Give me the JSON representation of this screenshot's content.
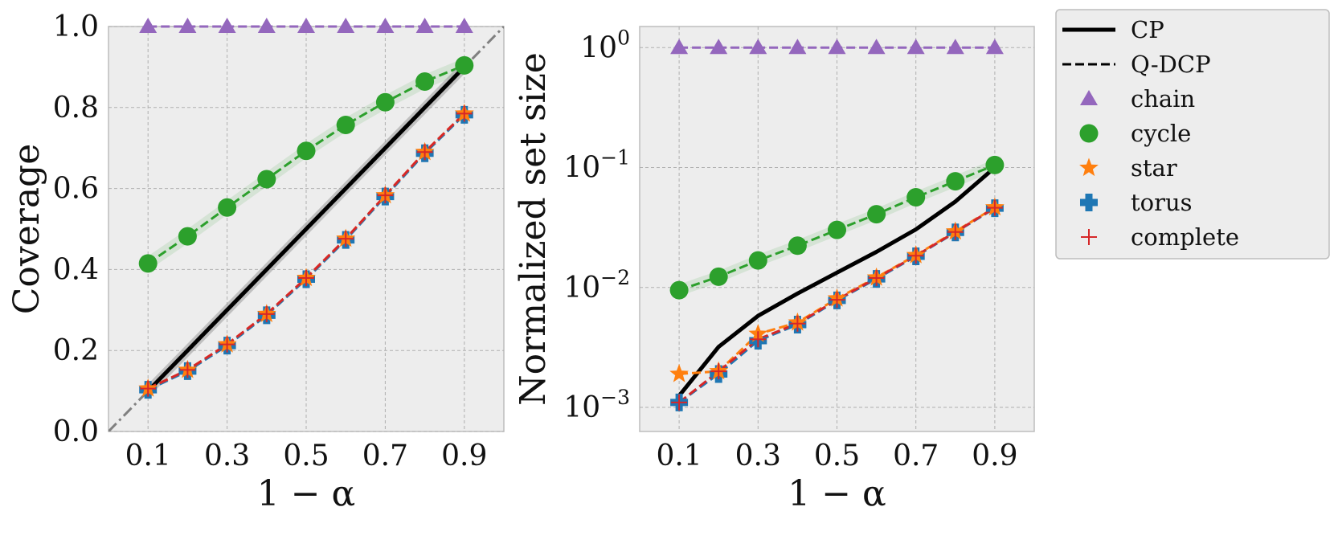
{
  "chart_data": [
    {
      "type": "line",
      "panel": "left",
      "xlabel": "1 − α",
      "ylabel": "Coverage",
      "xlim": [
        0.0,
        1.0
      ],
      "ylim": [
        0.0,
        1.0
      ],
      "yscale": "linear",
      "grid": true,
      "x": [
        0.1,
        0.2,
        0.3,
        0.4,
        0.5,
        0.6,
        0.7,
        0.8,
        0.9
      ],
      "xtick_values": [
        0.1,
        0.3,
        0.5,
        0.7,
        0.9
      ],
      "xtick_labels": [
        "0.1",
        "0.3",
        "0.5",
        "0.7",
        "0.9"
      ],
      "ytick_values": [
        0.0,
        0.2,
        0.4,
        0.6,
        0.8,
        1.0
      ],
      "ytick_labels": [
        "0.0",
        "0.2",
        "0.4",
        "0.6",
        "0.8",
        "1.0"
      ],
      "reference_line": {
        "name": "y = x",
        "x": [
          0.0,
          1.0
        ],
        "y": [
          0.0,
          1.0
        ]
      },
      "series": [
        {
          "name": "CP",
          "style": "solid",
          "values": [
            0.1,
            0.2,
            0.3,
            0.4,
            0.5,
            0.6,
            0.7,
            0.8,
            0.9
          ]
        },
        {
          "name": "Q-DCP chain",
          "style": "dashed",
          "marker": "triangle",
          "values": [
            1.0,
            1.0,
            1.0,
            1.0,
            1.0,
            1.0,
            1.0,
            1.0,
            1.0
          ]
        },
        {
          "name": "Q-DCP cycle",
          "style": "dashed",
          "marker": "circle",
          "values": [
            0.415,
            0.482,
            0.553,
            0.623,
            0.693,
            0.757,
            0.813,
            0.864,
            0.904
          ]
        },
        {
          "name": "Q-DCP star",
          "style": "dashed",
          "marker": "star",
          "values": [
            0.106,
            0.152,
            0.215,
            0.29,
            0.379,
            0.476,
            0.583,
            0.69,
            0.785
          ]
        },
        {
          "name": "Q-DCP torus",
          "style": "dashed",
          "marker": "plus-filled",
          "values": [
            0.103,
            0.149,
            0.212,
            0.287,
            0.376,
            0.473,
            0.58,
            0.687,
            0.782
          ]
        },
        {
          "name": "Q-DCP complete",
          "style": "dashed",
          "marker": "plus",
          "values": [
            0.106,
            0.152,
            0.215,
            0.29,
            0.379,
            0.476,
            0.583,
            0.69,
            0.785
          ]
        }
      ]
    },
    {
      "type": "line",
      "panel": "right",
      "xlabel": "1 − α",
      "ylabel": "Normalized set size",
      "xlim": [
        0.0,
        1.0
      ],
      "ylim": [
        0.00063,
        1.5
      ],
      "yscale": "log",
      "grid": true,
      "x": [
        0.1,
        0.2,
        0.3,
        0.4,
        0.5,
        0.6,
        0.7,
        0.8,
        0.9
      ],
      "xtick_values": [
        0.1,
        0.3,
        0.5,
        0.7,
        0.9
      ],
      "xtick_labels": [
        "0.1",
        "0.3",
        "0.5",
        "0.7",
        "0.9"
      ],
      "ytick_values": [
        0.001,
        0.01,
        0.1,
        1.0
      ],
      "ytick_exponents": [
        "−3",
        "−2",
        "−1",
        "0"
      ],
      "ytick_base": "10",
      "series": [
        {
          "name": "CP",
          "style": "solid",
          "values": [
            0.00125,
            0.0032,
            0.0058,
            0.0089,
            0.0133,
            0.0198,
            0.0305,
            0.052,
            0.1
          ]
        },
        {
          "name": "Q-DCP chain",
          "style": "dashed",
          "marker": "triangle",
          "values": [
            1.0,
            1.0,
            1.0,
            1.0,
            1.0,
            1.0,
            1.0,
            1.0,
            1.0
          ]
        },
        {
          "name": "Q-DCP cycle",
          "style": "dashed",
          "marker": "circle",
          "values": [
            0.0095,
            0.0123,
            0.0168,
            0.0223,
            0.0302,
            0.0408,
            0.0565,
            0.0768,
            0.105
          ]
        },
        {
          "name": "Q-DCP star",
          "style": "dashed",
          "marker": "star",
          "values": [
            0.0019,
            0.002,
            0.0041,
            0.0051,
            0.0081,
            0.0121,
            0.0186,
            0.0293,
            0.0465
          ]
        },
        {
          "name": "Q-DCP torus",
          "style": "dashed",
          "marker": "plus-filled",
          "values": [
            0.0011,
            0.0019,
            0.0036,
            0.0049,
            0.0078,
            0.0118,
            0.0182,
            0.0288,
            0.0458
          ]
        },
        {
          "name": "Q-DCP complete",
          "style": "dashed",
          "marker": "plus",
          "values": [
            0.0011,
            0.002,
            0.0037,
            0.005,
            0.0079,
            0.012,
            0.0184,
            0.029,
            0.0462
          ]
        }
      ]
    }
  ],
  "legend": {
    "placement": "outside-right",
    "items": [
      {
        "label": "CP",
        "kind": "line-solid",
        "color": "#000000"
      },
      {
        "label": "Q-DCP",
        "kind": "line-dashed",
        "color": "#000000"
      },
      {
        "label": "chain",
        "kind": "marker-triangle",
        "color": "#9467bd"
      },
      {
        "label": "cycle",
        "kind": "marker-circle",
        "color": "#2ca02c"
      },
      {
        "label": "star",
        "kind": "marker-star",
        "color": "#ff7f0e"
      },
      {
        "label": "torus",
        "kind": "marker-plus-filled",
        "color": "#1f77b4"
      },
      {
        "label": "complete",
        "kind": "marker-plus",
        "color": "#d62728"
      }
    ]
  },
  "colors": {
    "CP": "#000000",
    "chain": "#9467bd",
    "cycle": "#2ca02c",
    "star": "#ff7f0e",
    "torus": "#1f77b4",
    "complete": "#d62728",
    "reference": "#808080",
    "panel_bg": "#ededed"
  }
}
